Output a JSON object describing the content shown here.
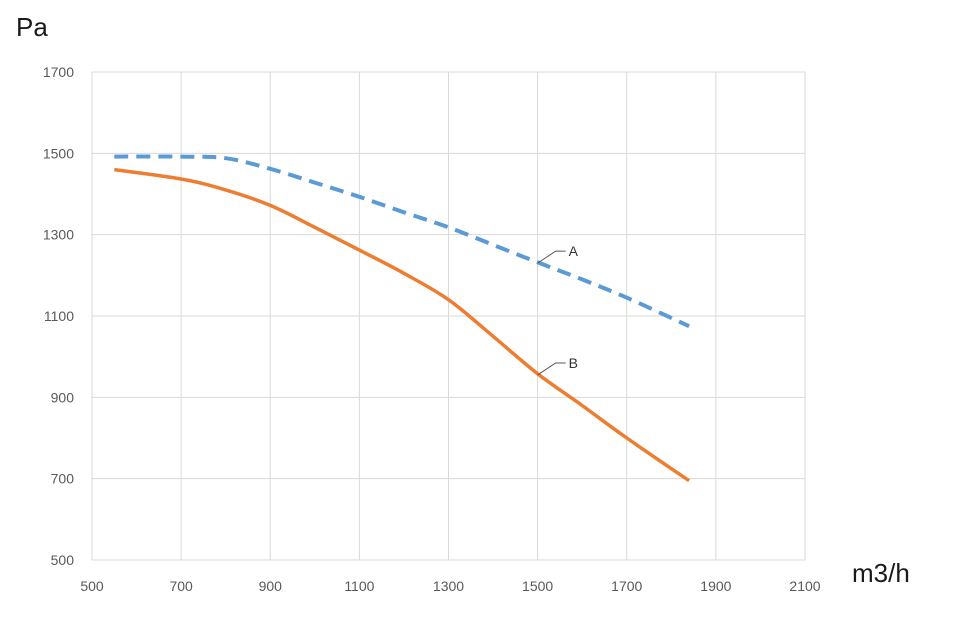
{
  "chart_data": {
    "type": "line",
    "title": "",
    "xlabel": "m3/h",
    "ylabel": "Pa",
    "xlim": [
      500,
      2100
    ],
    "ylim": [
      500,
      1700
    ],
    "xticks": [
      "500",
      "700",
      "900",
      "1100",
      "1300",
      "1500",
      "1700",
      "1900",
      "2100"
    ],
    "yticks": [
      "500",
      "700",
      "900",
      "1100",
      "1300",
      "1500",
      "1700"
    ],
    "grid": true,
    "legend": "none",
    "series": [
      {
        "name": "A",
        "style": "dashed",
        "color": "#5b9bd5",
        "label_anchor": {
          "x": 1500,
          "y": 1230
        },
        "points": [
          {
            "x": 550,
            "y": 1492
          },
          {
            "x": 700,
            "y": 1492
          },
          {
            "x": 800,
            "y": 1488
          },
          {
            "x": 900,
            "y": 1462
          },
          {
            "x": 1000,
            "y": 1428
          },
          {
            "x": 1100,
            "y": 1393
          },
          {
            "x": 1200,
            "y": 1355
          },
          {
            "x": 1300,
            "y": 1318
          },
          {
            "x": 1400,
            "y": 1275
          },
          {
            "x": 1500,
            "y": 1232
          },
          {
            "x": 1600,
            "y": 1190
          },
          {
            "x": 1700,
            "y": 1145
          },
          {
            "x": 1840,
            "y": 1075
          }
        ]
      },
      {
        "name": "B",
        "style": "solid",
        "color": "#ed7d31",
        "label_anchor": {
          "x": 1500,
          "y": 955
        },
        "points": [
          {
            "x": 550,
            "y": 1460
          },
          {
            "x": 700,
            "y": 1437
          },
          {
            "x": 800,
            "y": 1410
          },
          {
            "x": 900,
            "y": 1372
          },
          {
            "x": 1000,
            "y": 1318
          },
          {
            "x": 1100,
            "y": 1262
          },
          {
            "x": 1200,
            "y": 1205
          },
          {
            "x": 1300,
            "y": 1140
          },
          {
            "x": 1400,
            "y": 1050
          },
          {
            "x": 1500,
            "y": 958
          },
          {
            "x": 1600,
            "y": 880
          },
          {
            "x": 1700,
            "y": 800
          },
          {
            "x": 1840,
            "y": 695
          }
        ]
      }
    ]
  }
}
